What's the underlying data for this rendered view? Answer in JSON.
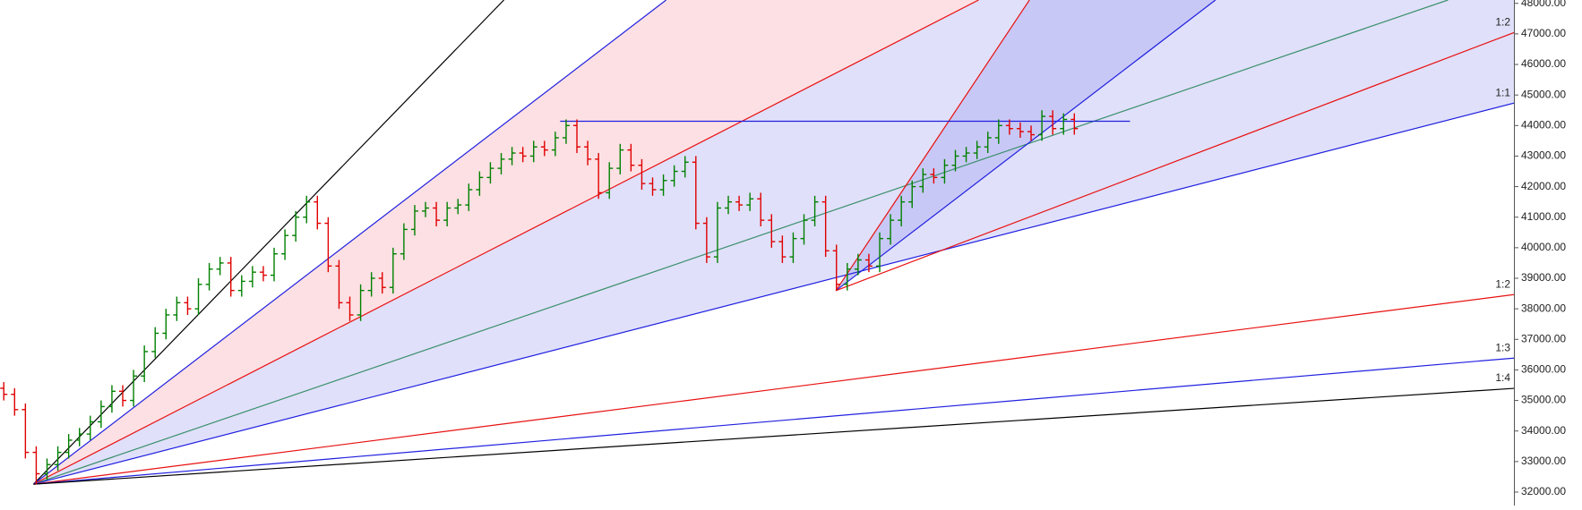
{
  "chart_data": {
    "type": "ohlc",
    "xlim": [
      0,
      140
    ],
    "ylim": [
      31560,
      48110
    ],
    "yticks": [
      {
        "value": 32000,
        "label": "32000.00"
      },
      {
        "value": 33000,
        "label": "33000.00"
      },
      {
        "value": 34000,
        "label": "34000.00"
      },
      {
        "value": 35000,
        "label": "35000.00"
      },
      {
        "value": 36000,
        "label": "36000.00"
      },
      {
        "value": 37000,
        "label": "37000.00"
      },
      {
        "value": 38000,
        "label": "38000.00"
      },
      {
        "value": 39000,
        "label": "39000.00"
      },
      {
        "value": 40000,
        "label": "40000.00"
      },
      {
        "value": 41000,
        "label": "41000.00"
      },
      {
        "value": 42000,
        "label": "42000.00"
      },
      {
        "value": 43000,
        "label": "43000.00"
      },
      {
        "value": 44000,
        "label": "44000.00"
      },
      {
        "value": 45000,
        "label": "45000.00"
      },
      {
        "value": 46000,
        "label": "46000.00"
      },
      {
        "value": 47000,
        "label": "47000.00"
      },
      {
        "value": 48000,
        "label": "48000.00"
      }
    ],
    "series": [
      {
        "up_color": "#008000",
        "down_color": "#e00000",
        "open": [
          35400,
          35200,
          34700,
          33300,
          32600,
          32900,
          33300,
          33700,
          33900,
          34300,
          34800,
          35300,
          35000,
          35800,
          36600,
          37200,
          37800,
          38200,
          38000,
          38800,
          39300,
          39500,
          38600,
          38900,
          39200,
          39100,
          39800,
          40400,
          41000,
          41500,
          40800,
          39400,
          38200,
          37800,
          38600,
          39000,
          38700,
          39800,
          40600,
          41200,
          41300,
          40900,
          41300,
          41400,
          41900,
          42300,
          42600,
          42900,
          43100,
          43000,
          43300,
          43200,
          43600,
          44000,
          43300,
          42900,
          41800,
          42600,
          43200,
          42700,
          42100,
          41900,
          42200,
          42500,
          42800,
          40800,
          39700,
          41300,
          41500,
          41400,
          41600,
          40900,
          40200,
          39700,
          40300,
          40900,
          41500,
          39900,
          38800,
          39300,
          39600,
          39400,
          40300,
          40900,
          41500,
          42000,
          42400,
          42300,
          42700,
          43000,
          43100,
          43300,
          43600,
          44000,
          43900,
          43800,
          43700,
          44300,
          43900,
          44200
        ],
        "high": [
          35600,
          35400,
          34900,
          33500,
          33100,
          33500,
          33900,
          34100,
          34500,
          35000,
          35500,
          35500,
          36000,
          36800,
          37400,
          38000,
          38400,
          38400,
          39000,
          39500,
          39700,
          39700,
          39100,
          39400,
          39400,
          40000,
          40600,
          41200,
          41700,
          41700,
          41000,
          39600,
          38400,
          38800,
          39200,
          39200,
          40000,
          40800,
          41400,
          41500,
          41500,
          41500,
          41600,
          42100,
          42500,
          42800,
          43100,
          43300,
          43300,
          43500,
          43500,
          43800,
          44200,
          44200,
          43500,
          43100,
          42800,
          43400,
          43400,
          42900,
          42300,
          42400,
          42700,
          43000,
          43000,
          41000,
          41500,
          41700,
          41700,
          41800,
          41800,
          41100,
          40400,
          40500,
          41100,
          41700,
          41700,
          40100,
          39500,
          39800,
          39800,
          40500,
          41100,
          41700,
          42200,
          42600,
          42600,
          42900,
          43200,
          43300,
          43500,
          43800,
          44200,
          44200,
          44100,
          44000,
          44500,
          44500,
          44400,
          44400
        ],
        "low": [
          35000,
          34500,
          33100,
          32250,
          32400,
          32700,
          33100,
          33500,
          33700,
          34100,
          34600,
          34800,
          34800,
          35600,
          36400,
          37000,
          37600,
          37800,
          37800,
          38600,
          39100,
          38400,
          38400,
          38700,
          38900,
          38900,
          39600,
          40200,
          40800,
          40600,
          39200,
          38000,
          37600,
          37600,
          38400,
          38500,
          38500,
          39600,
          40400,
          41000,
          40700,
          40700,
          41100,
          41200,
          41700,
          42100,
          42400,
          42700,
          42800,
          42800,
          43000,
          43000,
          43400,
          43100,
          42700,
          41600,
          41600,
          42400,
          42500,
          41900,
          41700,
          41700,
          42000,
          42300,
          40600,
          39500,
          39500,
          41100,
          41200,
          41200,
          40700,
          40000,
          39500,
          39500,
          40100,
          40700,
          39700,
          38600,
          38600,
          39100,
          39200,
          39200,
          40100,
          40700,
          41300,
          41800,
          42100,
          42100,
          42500,
          42800,
          42900,
          43100,
          43400,
          43700,
          43600,
          43500,
          43500,
          43700,
          43700,
          43700
        ],
        "close": [
          35200,
          34700,
          33300,
          32600,
          32900,
          33300,
          33700,
          33900,
          34300,
          34800,
          35300,
          35000,
          35800,
          36600,
          37200,
          37800,
          38200,
          38000,
          38800,
          39300,
          39500,
          38600,
          38900,
          39200,
          39100,
          39800,
          40400,
          41000,
          41500,
          40800,
          39400,
          38200,
          37800,
          38600,
          39000,
          38700,
          39800,
          40600,
          41200,
          41300,
          40900,
          41300,
          41400,
          41900,
          42300,
          42600,
          42900,
          43100,
          43000,
          43300,
          43200,
          43600,
          44000,
          43300,
          42900,
          41800,
          42600,
          43200,
          42700,
          42100,
          41900,
          42200,
          42500,
          42800,
          40800,
          39700,
          41300,
          41500,
          41400,
          41600,
          40900,
          40200,
          39700,
          40300,
          40900,
          41500,
          39900,
          38800,
          39300,
          39600,
          39400,
          40300,
          40900,
          41500,
          42000,
          42400,
          42300,
          42700,
          43000,
          43100,
          43300,
          43600,
          44000,
          43900,
          43800,
          43700,
          44300,
          43900,
          44200,
          43900
        ]
      }
    ],
    "fan_lines": [
      {
        "points": [
          3.1,
          32260,
          46.6,
          48110
        ],
        "color": "#000000"
      },
      {
        "points": [
          3.1,
          32260,
          61.6,
          48110
        ],
        "color": "#2020e0"
      },
      {
        "points": [
          3.1,
          32260,
          90.5,
          48110
        ],
        "color": "#e81010"
      },
      {
        "points": [
          3.1,
          32260,
          133.9,
          48110
        ],
        "color": "#3a8f6a"
      },
      {
        "points": [
          3.1,
          32260,
          140,
          44735
        ],
        "color": "#2020e0",
        "label": "1:1"
      },
      {
        "points": [
          3.1,
          32260,
          140,
          38466
        ],
        "color": "#e81010",
        "label": "1:2"
      },
      {
        "points": [
          3.1,
          32260,
          140,
          36387
        ],
        "color": "#2020e0",
        "label": "1:3"
      },
      {
        "points": [
          3.1,
          32260,
          140,
          35395
        ],
        "color": "#000000",
        "label": "1:4"
      },
      {
        "points": [
          77.3,
          38595,
          95.2,
          48110
        ],
        "color": "#e81010"
      },
      {
        "points": [
          77.3,
          38595,
          112.4,
          48110
        ],
        "color": "#2020e0"
      },
      {
        "points": [
          77.3,
          38595,
          140,
          47043
        ],
        "color": "#e81010",
        "label": "1:2"
      },
      {
        "points": [
          51.8,
          44140,
          104.5,
          44140
        ],
        "color": "#2020e0"
      }
    ],
    "fills": [
      {
        "lines": [
          1,
          2
        ],
        "color": "#fde0e3"
      },
      {
        "lines": [
          2,
          4
        ],
        "color": "#e0e0fa"
      },
      {
        "lines": [
          8,
          9
        ],
        "color": "#c8c8f6"
      }
    ]
  }
}
